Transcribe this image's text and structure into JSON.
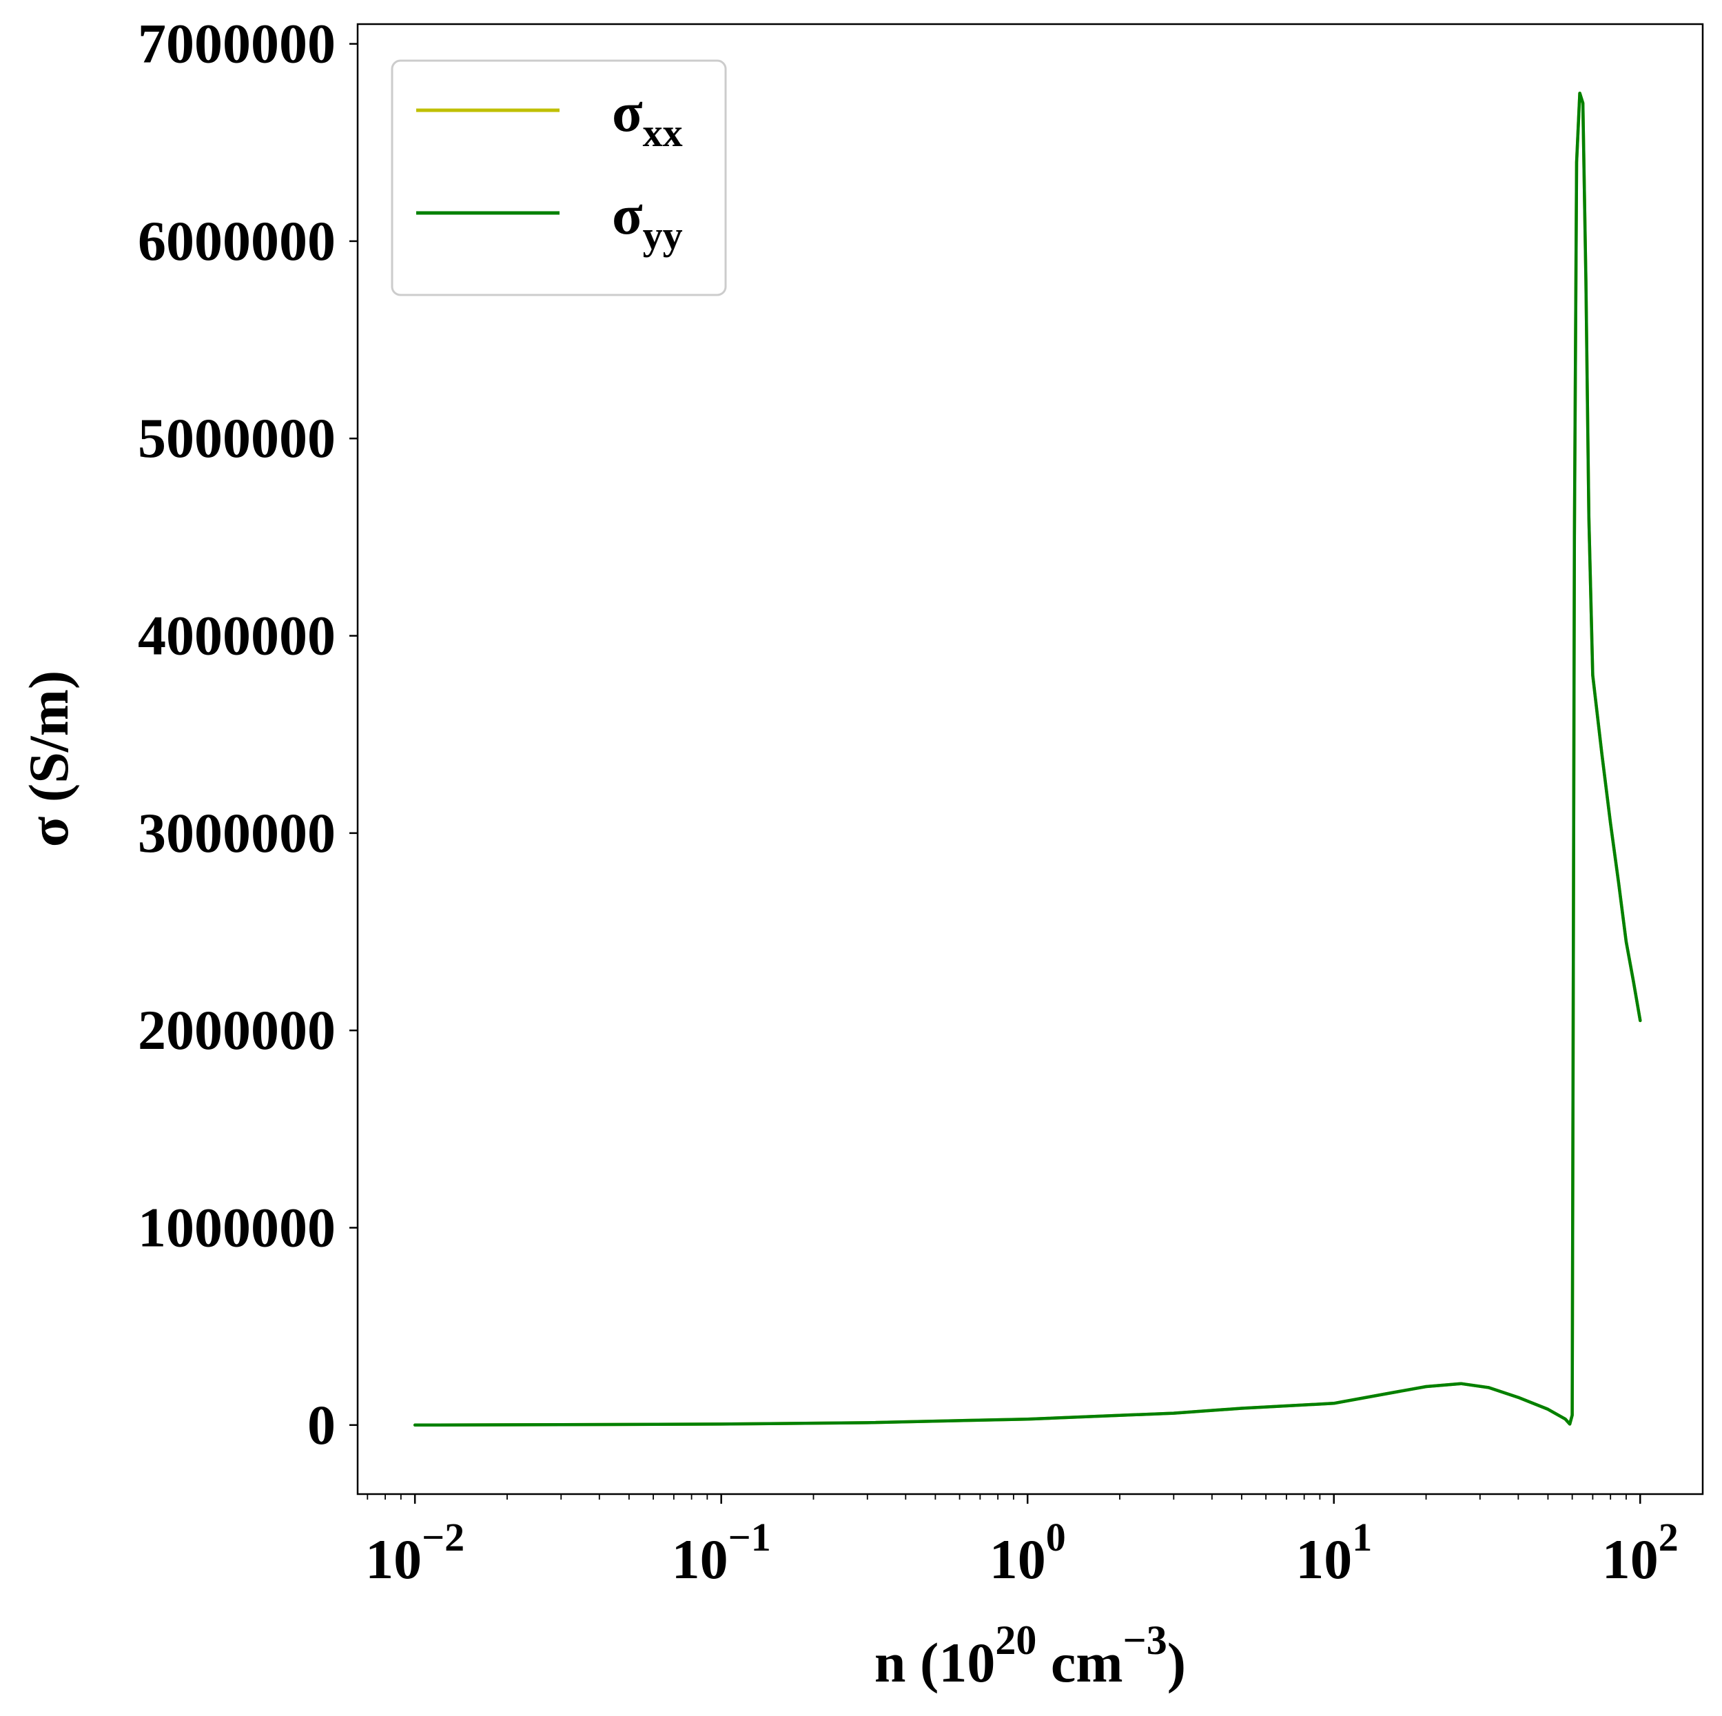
{
  "chart_data": {
    "type": "line",
    "title": "",
    "xlabel": {
      "base": "n (10",
      "sup1": "20",
      "mid": " cm",
      "sup2": "−3",
      "end": ")"
    },
    "ylabel": "σ (S/m)",
    "xscale": "log",
    "xlim": [
      0.0065,
      160
    ],
    "ylim": [
      -350000,
      7100000
    ],
    "yticks": [
      0,
      1000000,
      2000000,
      3000000,
      4000000,
      5000000,
      6000000,
      7000000
    ],
    "ytick_labels": [
      "0",
      "1000000",
      "2000000",
      "3000000",
      "4000000",
      "5000000",
      "6000000",
      "7000000"
    ],
    "xticks": [
      {
        "value": 0.01,
        "base": "10",
        "exp": "−2"
      },
      {
        "value": 0.1,
        "base": "10",
        "exp": "−1"
      },
      {
        "value": 1,
        "base": "10",
        "exp": "0"
      },
      {
        "value": 10,
        "base": "10",
        "exp": "1"
      },
      {
        "value": 100,
        "base": "10",
        "exp": "2"
      }
    ],
    "grid": false,
    "legend_position": "top-left",
    "series": [
      {
        "name": "σ",
        "sub": "xx",
        "color": "#bfbf00",
        "x": [
          0.01,
          0.03,
          0.1,
          0.3,
          1,
          3,
          5,
          10,
          15,
          20,
          26,
          32,
          40,
          50,
          57,
          58.9,
          60,
          61,
          62,
          63.5,
          65,
          66.5,
          68,
          70,
          75,
          80,
          85,
          90,
          95,
          100
        ],
        "y": [
          0,
          2000,
          5000,
          12000,
          30000,
          60000,
          85000,
          110000,
          160000,
          195000,
          210000,
          190000,
          140000,
          80000,
          30000,
          5000,
          50000,
          4500000,
          6400000,
          6750000,
          6700000,
          5800000,
          4600000,
          3800000,
          3400000,
          3050000,
          2750000,
          2450000,
          2250000,
          2050000
        ]
      },
      {
        "name": "σ",
        "sub": "yy",
        "color": "#008000",
        "x": [
          0.01,
          0.03,
          0.1,
          0.3,
          1,
          3,
          5,
          10,
          15,
          20,
          26,
          32,
          40,
          50,
          57,
          58.9,
          60,
          61,
          62,
          63.5,
          65,
          66.5,
          68,
          70,
          75,
          80,
          85,
          90,
          95,
          100
        ],
        "y": [
          0,
          2000,
          5000,
          12000,
          30000,
          60000,
          85000,
          110000,
          160000,
          195000,
          210000,
          190000,
          140000,
          80000,
          30000,
          5000,
          50000,
          4500000,
          6400000,
          6750000,
          6700000,
          5800000,
          4600000,
          3800000,
          3400000,
          3050000,
          2750000,
          2450000,
          2250000,
          2050000
        ]
      }
    ]
  }
}
